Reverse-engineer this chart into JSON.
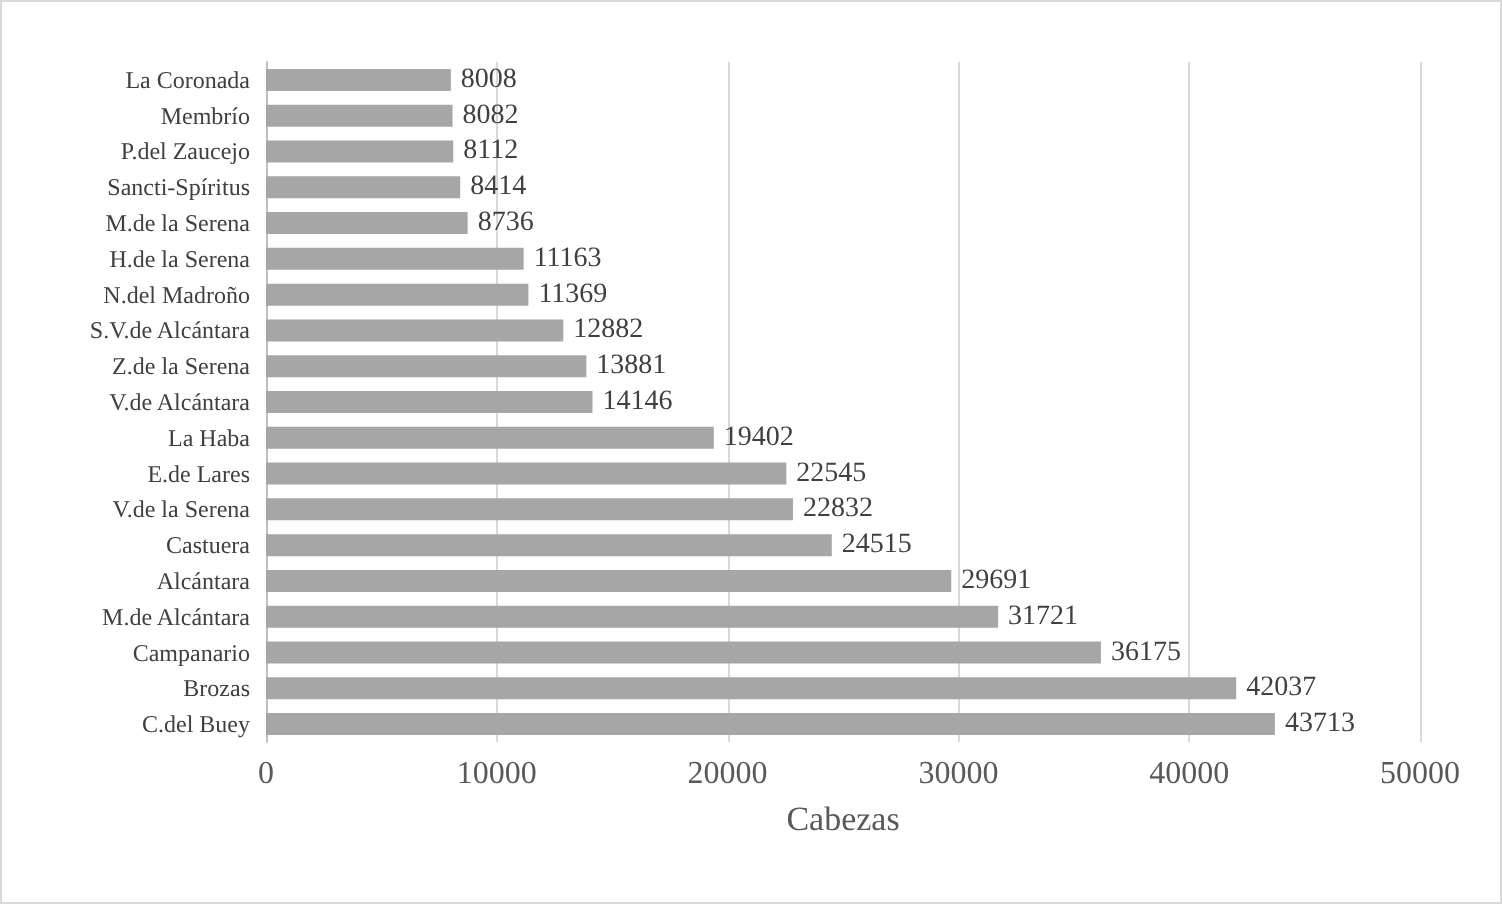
{
  "chart_data": {
    "type": "bar",
    "orientation": "horizontal",
    "xlabel": "Cabezas",
    "categories": [
      "La Coronada",
      "Membrío",
      "P.del Zaucejo",
      "Sancti-Spíritus",
      "M.de la Serena",
      "H.de la Serena",
      "N.del Madroño",
      "S.V.de Alcántara",
      "Z.de la Serena",
      "V.de Alcántara",
      "La Haba",
      "E.de Lares",
      "V.de la Serena",
      "Castuera",
      "Alcántara",
      "M.de Alcántara",
      "Campanario",
      "Brozas",
      "C.del Buey"
    ],
    "values": [
      8008,
      8082,
      8112,
      8414,
      8736,
      11163,
      11369,
      12882,
      13881,
      14146,
      19402,
      22545,
      22832,
      24515,
      29691,
      31721,
      36175,
      42037,
      43713
    ],
    "color": "#a6a6a6",
    "xlim": [
      0,
      50000
    ],
    "xticks": [
      0,
      10000,
      20000,
      30000,
      40000,
      50000
    ],
    "grid": "x",
    "data_labels": true
  }
}
